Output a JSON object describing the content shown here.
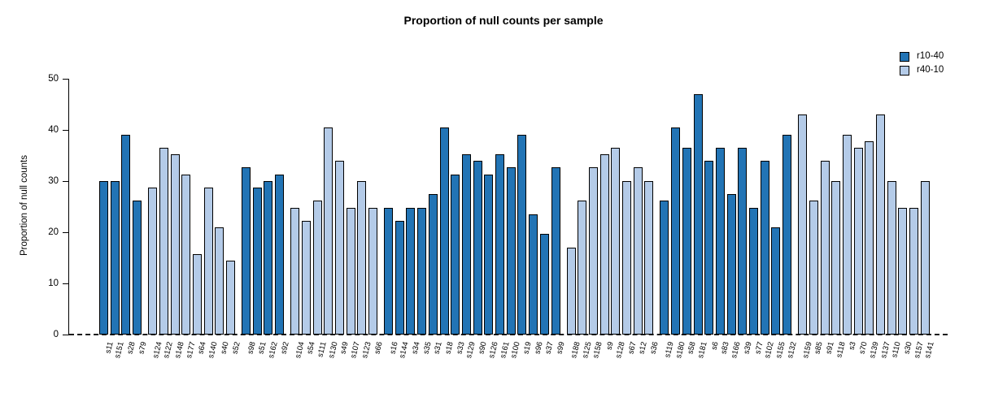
{
  "title": "Proportion of null counts per sample",
  "legend": [
    {
      "label": "r10-40",
      "color": "#2274B5"
    },
    {
      "label": "r40-10",
      "color": "#B4CBE8"
    }
  ],
  "chart_data": {
    "type": "bar",
    "title": "Proportion of null counts per sample",
    "xlabel": "",
    "ylabel": "Proportion of null counts",
    "ylim": [
      0,
      50
    ],
    "yticks": [
      0,
      10,
      20,
      30,
      40,
      50
    ],
    "grid": false,
    "baseline_style": "dashed-zero-line",
    "legend_position": "top-right",
    "series": [
      {
        "name": "r10-40",
        "color": "#2274B5"
      },
      {
        "name": "r40-10",
        "color": "#B4CBE8"
      }
    ],
    "groups": [
      {
        "series": "r10-40",
        "bars": [
          {
            "label": "s11",
            "value": 29.87
          },
          {
            "label": "s151",
            "value": 29.87
          },
          {
            "label": "s28",
            "value": 38.96
          },
          {
            "label": "s79",
            "value": 25.97
          }
        ]
      },
      {
        "series": "r40-10",
        "bars": [
          {
            "label": "s124",
            "value": 28.57
          },
          {
            "label": "s122",
            "value": 36.36
          },
          {
            "label": "s148",
            "value": 35.06
          },
          {
            "label": "s177",
            "value": 31.17
          },
          {
            "label": "s64",
            "value": 15.58
          },
          {
            "label": "s140",
            "value": 28.57
          },
          {
            "label": "s40",
            "value": 20.78
          },
          {
            "label": "s52",
            "value": 14.29
          }
        ]
      },
      {
        "series": "r10-40",
        "bars": [
          {
            "label": "s98",
            "value": 32.47
          },
          {
            "label": "s51",
            "value": 28.57
          },
          {
            "label": "s162",
            "value": 29.87
          },
          {
            "label": "s92",
            "value": 31.17
          }
        ]
      },
      {
        "series": "r40-10",
        "bars": [
          {
            "label": "s104",
            "value": 24.68
          },
          {
            "label": "s54",
            "value": 22.08
          },
          {
            "label": "s111",
            "value": 25.97
          },
          {
            "label": "s130",
            "value": 40.26
          },
          {
            "label": "s49",
            "value": 33.77
          },
          {
            "label": "s107",
            "value": 24.68
          },
          {
            "label": "s123",
            "value": 29.87
          },
          {
            "label": "s66",
            "value": 24.68
          }
        ]
      },
      {
        "series": "r10-40",
        "bars": [
          {
            "label": "s16",
            "value": 24.68
          },
          {
            "label": "s144",
            "value": 22.08
          },
          {
            "label": "s34",
            "value": 24.68
          },
          {
            "label": "s35",
            "value": 24.68
          },
          {
            "label": "s31",
            "value": 27.27
          },
          {
            "label": "s18",
            "value": 40.26
          },
          {
            "label": "s33",
            "value": 31.17
          },
          {
            "label": "s129",
            "value": 35.06
          },
          {
            "label": "s90",
            "value": 33.77
          },
          {
            "label": "s126",
            "value": 31.17
          },
          {
            "label": "s161",
            "value": 35.06
          },
          {
            "label": "s100",
            "value": 32.47
          },
          {
            "label": "s19",
            "value": 38.96
          },
          {
            "label": "s96",
            "value": 23.38
          },
          {
            "label": "s37",
            "value": 19.48
          },
          {
            "label": "s99",
            "value": 32.47
          }
        ]
      },
      {
        "series": "r40-10",
        "bars": [
          {
            "label": "s188",
            "value": 16.88
          },
          {
            "label": "s125",
            "value": 25.97
          },
          {
            "label": "s158",
            "value": 32.47
          },
          {
            "label": "s9",
            "value": 35.06
          },
          {
            "label": "s128",
            "value": 36.36
          },
          {
            "label": "s67",
            "value": 29.87
          },
          {
            "label": "s12",
            "value": 32.47
          },
          {
            "label": "s36",
            "value": 29.87
          }
        ]
      },
      {
        "series": "r10-40",
        "bars": [
          {
            "label": "s119",
            "value": 25.97
          },
          {
            "label": "s180",
            "value": 40.26
          },
          {
            "label": "s58",
            "value": 36.36
          },
          {
            "label": "s181",
            "value": 46.75
          },
          {
            "label": "s6",
            "value": 33.77
          },
          {
            "label": "s83",
            "value": 36.36
          },
          {
            "label": "s166",
            "value": 27.27
          },
          {
            "label": "s39",
            "value": 36.36
          },
          {
            "label": "s77",
            "value": 24.68
          },
          {
            "label": "s102",
            "value": 33.77
          },
          {
            "label": "s155",
            "value": 20.78
          },
          {
            "label": "s132",
            "value": 38.96
          }
        ]
      },
      {
        "series": "r40-10",
        "bars": [
          {
            "label": "s159",
            "value": 42.86
          },
          {
            "label": "s85",
            "value": 25.97
          },
          {
            "label": "s91",
            "value": 33.77
          },
          {
            "label": "s118",
            "value": 29.87
          },
          {
            "label": "s3",
            "value": 38.96
          },
          {
            "label": "s70",
            "value": 36.36
          },
          {
            "label": "s139",
            "value": 37.66
          },
          {
            "label": "s137",
            "value": 42.86
          },
          {
            "label": "s110",
            "value": 29.87
          },
          {
            "label": "s30",
            "value": 24.68
          },
          {
            "label": "s157",
            "value": 24.68
          },
          {
            "label": "s141",
            "value": 29.87
          }
        ]
      }
    ]
  }
}
